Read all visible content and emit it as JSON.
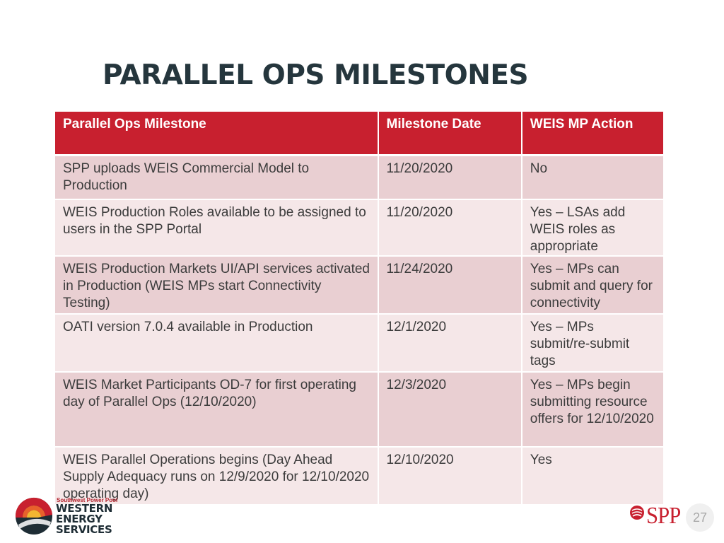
{
  "title": "PARALLEL OPS MILESTONES",
  "table": {
    "headers": [
      "Parallel Ops Milestone",
      "Milestone Date",
      "WEIS MP Action"
    ],
    "rows": [
      [
        "SPP uploads WEIS Commercial Model to Production",
        "11/20/2020",
        "No"
      ],
      [
        "WEIS Production Roles available to be assigned to users in the SPP Portal",
        "11/20/2020",
        "Yes – LSAs add WEIS roles as appropriate"
      ],
      [
        "WEIS Production Markets UI/API services activated in Production (WEIS MPs start Connectivity Testing)",
        "11/24/2020",
        "Yes – MPs can submit and query for connectivity"
      ],
      [
        "OATI version 7.0.4 available in Production",
        "12/1/2020",
        "Yes – MPs submit/re-submit tags"
      ],
      [
        "WEIS Market Participants OD-7 for first operating day of Parallel Ops (12/10/2020)",
        "12/3/2020",
        "Yes – MPs begin submitting resource offers for 12/10/2020"
      ],
      [
        "WEIS Parallel Operations begins (Day Ahead Supply Adequacy runs on 12/9/2020 for 12/10/2020 operating day)",
        "12/10/2020",
        "Yes"
      ]
    ]
  },
  "footer": {
    "wes_logo": {
      "org": "Southwest Power Pool",
      "line1": "WESTERN",
      "line2": "ENERGY",
      "line3": "SERVICES"
    },
    "spp_logo": {
      "text": "SPP"
    },
    "page_number": "27"
  },
  "colors": {
    "header_red": "#c8202f",
    "row_dark": "#e9cfd2",
    "row_light": "#f5e7e8",
    "title": "#25363d"
  }
}
